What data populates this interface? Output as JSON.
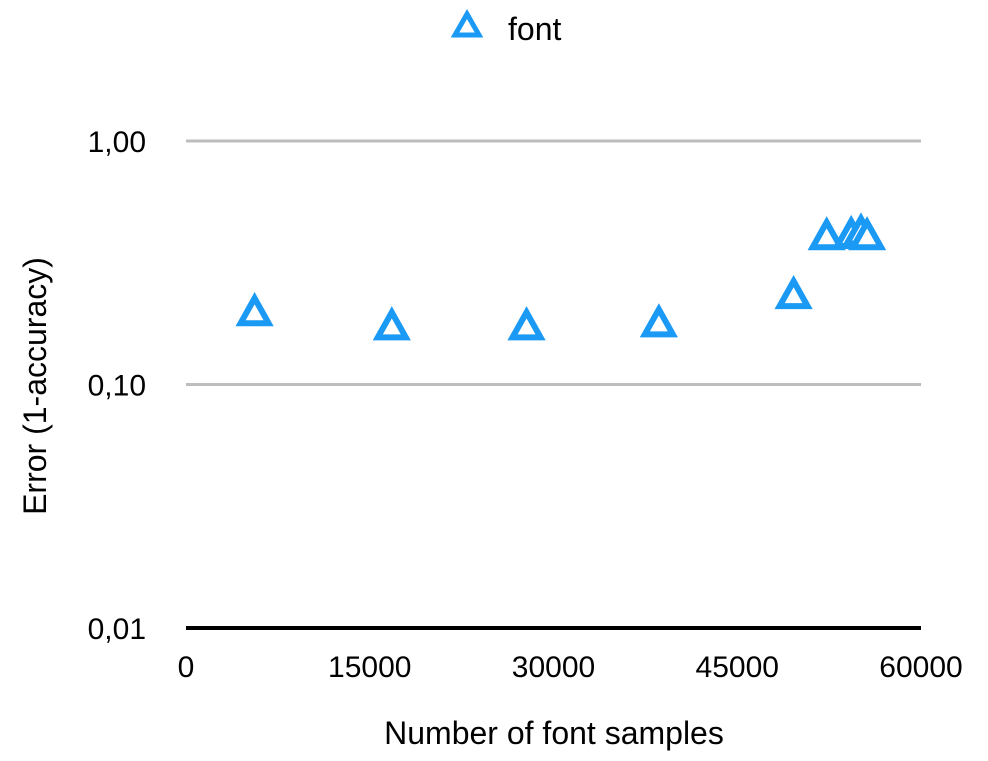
{
  "chart_data": {
    "type": "scatter",
    "title": "",
    "xlabel": "Number of font samples",
    "ylabel": "Error (1-accuracy)",
    "x_scale": "linear",
    "y_scale": "log",
    "xlim": [
      0,
      60000
    ],
    "ylim": [
      0.01,
      1
    ],
    "x_ticks": [
      "0",
      "15000",
      "30000",
      "45000",
      "60000"
    ],
    "y_ticks": [
      "0,01",
      "0,10",
      "1,00"
    ],
    "grid": "horizontal",
    "legend_position": "top-center",
    "series": [
      {
        "name": "font",
        "marker": "triangle-open",
        "color": "#1a9af5",
        "points": [
          {
            "x": 5600,
            "y": 0.2
          },
          {
            "x": 16800,
            "y": 0.175
          },
          {
            "x": 27800,
            "y": 0.175
          },
          {
            "x": 38600,
            "y": 0.18
          },
          {
            "x": 49600,
            "y": 0.235
          },
          {
            "x": 52300,
            "y": 0.41
          },
          {
            "x": 54300,
            "y": 0.415
          },
          {
            "x": 55100,
            "y": 0.425
          },
          {
            "x": 55600,
            "y": 0.41
          }
        ]
      }
    ]
  }
}
